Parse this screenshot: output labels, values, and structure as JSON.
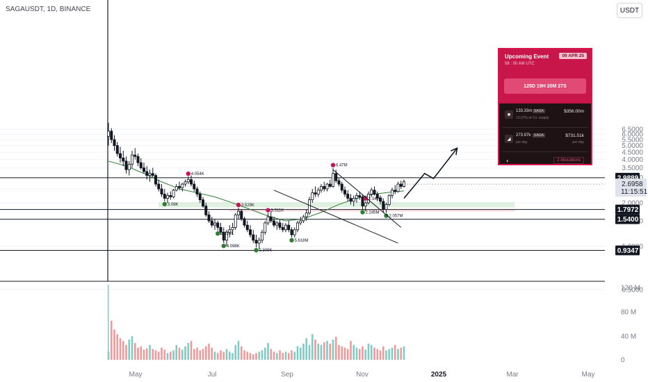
{
  "header": {
    "symbol_title": "SAGAUSDT, 1D, BINANCE",
    "currency_button": "USDT"
  },
  "event_card": {
    "title": "Upcoming Event",
    "date": "09 APR 25",
    "time": "08 : 00 AM UTC",
    "countdown": "125D 19H 20M 27S",
    "rows": [
      {
        "amount": "133.33m",
        "token": "SAGA",
        "sub": "13.07% of Cir. supply",
        "value": "$356.00m",
        "value_sub": ""
      },
      {
        "amount": "273.97k",
        "token": "SAGA",
        "sub": "per day",
        "value": "$731.51k",
        "value_sub": "per day"
      }
    ],
    "allocations": "2 Allocations"
  },
  "colors": {
    "up": "#26a69a",
    "down": "#ef5350",
    "ma": "#2e7d32",
    "accent": "#d6184e",
    "tag_bg": "#131722",
    "current_tag_bg": "#e0e3eb"
  },
  "chart_data": {
    "type": "candlestick",
    "title": "SAGAUSDT, 1D, BINANCE",
    "y_axis": {
      "scale": "log",
      "ticks": [
        "6.5000",
        "6.0000",
        "5.5000",
        "5.0000",
        "4.5000",
        "4.0000",
        "3.5000",
        "3.0000",
        "2.5000",
        "2.0000",
        "1.5000",
        "1.0000",
        "0.5000"
      ],
      "range": [
        0.32,
        7.5
      ]
    },
    "x_axis": {
      "ticks": [
        "May",
        "Jul",
        "Sep",
        "Nov",
        "2025",
        "Mar",
        "May"
      ]
    },
    "volume_axis": {
      "ticks": [
        "120 M",
        "80 M",
        "40 M",
        "0"
      ]
    },
    "price_levels": [
      {
        "label": "2.9889",
        "value": 2.9889
      },
      {
        "label": "1.7972",
        "value": 1.7972
      },
      {
        "label": "1.5400",
        "value": 1.54
      },
      {
        "label": "0.9347",
        "value": 0.9347
      }
    ],
    "current_price": {
      "value": "2.6958",
      "countdown": "11:15:51"
    },
    "ohlc": [
      [
        5.8,
        7.2,
        5.0,
        6.3
      ],
      [
        6.3,
        6.6,
        5.2,
        5.5
      ],
      [
        5.5,
        5.9,
        4.6,
        5.0
      ],
      [
        5.0,
        5.3,
        4.2,
        4.4
      ],
      [
        4.4,
        4.9,
        3.8,
        4.1
      ],
      [
        4.1,
        4.6,
        3.6,
        3.9
      ],
      [
        3.9,
        4.2,
        3.2,
        3.4
      ],
      [
        3.4,
        3.9,
        3.1,
        3.7
      ],
      [
        3.7,
        4.6,
        3.5,
        4.3
      ],
      [
        4.3,
        4.8,
        4.0,
        4.2
      ],
      [
        4.2,
        4.4,
        3.6,
        3.8
      ],
      [
        3.8,
        4.1,
        3.4,
        3.5
      ],
      [
        3.5,
        3.8,
        3.2,
        3.3
      ],
      [
        3.3,
        3.6,
        2.9,
        3.1
      ],
      [
        3.1,
        3.4,
        2.8,
        3.2
      ],
      [
        3.2,
        3.5,
        3.0,
        3.1
      ],
      [
        3.1,
        3.2,
        2.6,
        2.7
      ],
      [
        2.7,
        2.9,
        2.4,
        2.5
      ],
      [
        2.5,
        2.7,
        2.2,
        2.3
      ],
      [
        2.3,
        2.5,
        2.05,
        2.15
      ],
      [
        2.15,
        2.35,
        2.0,
        2.25
      ],
      [
        2.25,
        2.4,
        2.1,
        2.2
      ],
      [
        2.2,
        2.5,
        2.15,
        2.45
      ],
      [
        2.45,
        2.7,
        2.4,
        2.6
      ],
      [
        2.6,
        2.8,
        2.45,
        2.55
      ],
      [
        2.55,
        2.75,
        2.4,
        2.7
      ],
      [
        2.7,
        2.9,
        2.6,
        2.8
      ],
      [
        2.8,
        3.05,
        2.7,
        2.9
      ],
      [
        2.9,
        3.1,
        2.6,
        2.7
      ],
      [
        2.7,
        2.85,
        2.4,
        2.5
      ],
      [
        2.5,
        2.6,
        2.2,
        2.3
      ],
      [
        2.3,
        2.4,
        2.0,
        2.1
      ],
      [
        2.1,
        2.2,
        1.85,
        1.9
      ],
      [
        1.9,
        2.0,
        1.6,
        1.65
      ],
      [
        1.65,
        1.75,
        1.45,
        1.5
      ],
      [
        1.5,
        1.6,
        1.35,
        1.4
      ],
      [
        1.4,
        1.55,
        1.3,
        1.45
      ],
      [
        1.45,
        1.5,
        1.28,
        1.35
      ],
      [
        1.35,
        1.45,
        1.2,
        1.25
      ],
      [
        1.25,
        1.35,
        1.05,
        1.1
      ],
      [
        1.1,
        1.3,
        1.0,
        1.25
      ],
      [
        1.25,
        1.4,
        1.15,
        1.3
      ],
      [
        1.3,
        1.45,
        1.2,
        1.35
      ],
      [
        1.35,
        1.7,
        1.3,
        1.65
      ],
      [
        1.65,
        1.85,
        1.55,
        1.75
      ],
      [
        1.75,
        1.8,
        1.5,
        1.55
      ],
      [
        1.55,
        1.6,
        1.35,
        1.4
      ],
      [
        1.4,
        1.5,
        1.25,
        1.3
      ],
      [
        1.3,
        1.4,
        1.15,
        1.2
      ],
      [
        1.2,
        1.3,
        1.05,
        1.1
      ],
      [
        1.1,
        1.2,
        0.98,
        1.05
      ],
      [
        1.05,
        1.15,
        0.95,
        1.1
      ],
      [
        1.1,
        1.3,
        1.05,
        1.25
      ],
      [
        1.25,
        1.5,
        1.2,
        1.45
      ],
      [
        1.45,
        1.7,
        1.4,
        1.6
      ],
      [
        1.6,
        1.75,
        1.45,
        1.5
      ],
      [
        1.5,
        1.6,
        1.35,
        1.4
      ],
      [
        1.4,
        1.5,
        1.3,
        1.45
      ],
      [
        1.45,
        1.55,
        1.3,
        1.35
      ],
      [
        1.35,
        1.45,
        1.25,
        1.3
      ],
      [
        1.3,
        1.45,
        1.25,
        1.4
      ],
      [
        1.4,
        1.5,
        1.25,
        1.3
      ],
      [
        1.3,
        1.35,
        1.15,
        1.2
      ],
      [
        1.2,
        1.35,
        1.15,
        1.3
      ],
      [
        1.3,
        1.5,
        1.25,
        1.45
      ],
      [
        1.45,
        1.6,
        1.4,
        1.5
      ],
      [
        1.5,
        1.65,
        1.45,
        1.6
      ],
      [
        1.6,
        1.8,
        1.5,
        1.7
      ],
      [
        1.7,
        2.2,
        1.65,
        2.1
      ],
      [
        2.1,
        2.5,
        2.0,
        2.35
      ],
      [
        2.35,
        2.6,
        2.2,
        2.3
      ],
      [
        2.3,
        2.55,
        2.2,
        2.45
      ],
      [
        2.45,
        2.7,
        2.35,
        2.6
      ],
      [
        2.6,
        2.8,
        2.4,
        2.5
      ],
      [
        2.5,
        2.75,
        2.4,
        2.7
      ],
      [
        2.7,
        2.9,
        2.55,
        2.6
      ],
      [
        2.6,
        3.5,
        2.55,
        3.2
      ],
      [
        3.2,
        3.4,
        2.75,
        2.85
      ],
      [
        2.85,
        3.0,
        2.6,
        2.7
      ],
      [
        2.7,
        2.8,
        2.35,
        2.45
      ],
      [
        2.45,
        2.6,
        2.2,
        2.3
      ],
      [
        2.3,
        2.45,
        2.05,
        2.15
      ],
      [
        2.15,
        2.3,
        1.95,
        2.05
      ],
      [
        2.05,
        2.25,
        1.9,
        2.15
      ],
      [
        2.15,
        2.35,
        2.0,
        2.25
      ],
      [
        2.25,
        2.4,
        2.1,
        2.2
      ],
      [
        2.2,
        2.3,
        1.8,
        1.9
      ],
      [
        1.9,
        2.05,
        1.75,
        2.0
      ],
      [
        2.0,
        2.4,
        1.95,
        2.3
      ],
      [
        2.3,
        2.55,
        2.2,
        2.45
      ],
      [
        2.45,
        2.6,
        2.25,
        2.3
      ],
      [
        2.3,
        2.4,
        2.05,
        2.15
      ],
      [
        2.15,
        2.25,
        1.95,
        2.05
      ],
      [
        2.05,
        2.15,
        1.7,
        1.8
      ],
      [
        1.8,
        2.0,
        1.7,
        1.95
      ],
      [
        1.95,
        2.3,
        1.9,
        2.25
      ],
      [
        2.25,
        2.55,
        2.15,
        2.45
      ],
      [
        2.45,
        2.65,
        2.3,
        2.4
      ],
      [
        2.4,
        2.8,
        2.35,
        2.7
      ],
      [
        2.7,
        2.85,
        2.5,
        2.6
      ],
      [
        2.6,
        2.9,
        2.55,
        2.8
      ]
    ],
    "moving_average": [
      [
        0,
        3.9
      ],
      [
        6,
        3.6
      ],
      [
        12,
        3.2
      ],
      [
        18,
        2.8
      ],
      [
        24,
        2.5
      ],
      [
        30,
        2.35
      ],
      [
        36,
        2.2
      ],
      [
        42,
        2.0
      ],
      [
        48,
        1.8
      ],
      [
        54,
        1.62
      ],
      [
        60,
        1.5
      ],
      [
        66,
        1.55
      ],
      [
        72,
        1.72
      ],
      [
        78,
        1.95
      ],
      [
        84,
        2.15
      ],
      [
        90,
        2.3
      ],
      [
        96,
        2.38
      ],
      [
        100,
        2.42
      ]
    ],
    "markers": [
      {
        "label": "4.054K",
        "kind": "high",
        "i": 27
      },
      {
        "label": "3.09K",
        "kind": "low",
        "i": 19
      },
      {
        "label": "2.024K",
        "kind": "low",
        "i": 37
      },
      {
        "label": "3.529K",
        "kind": "high",
        "i": 44
      },
      {
        "label": "4.098K",
        "kind": "low",
        "i": 39
      },
      {
        "label": "3.511K",
        "kind": "high",
        "i": 54
      },
      {
        "label": "2.309K",
        "kind": "low",
        "i": 50
      },
      {
        "label": "5.618M",
        "kind": "low",
        "i": 62
      },
      {
        "label": "6.47M",
        "kind": "high",
        "i": 76
      },
      {
        "label": "2.342M",
        "kind": "high",
        "i": 87
      },
      {
        "label": "2.245M",
        "kind": "low",
        "i": 86
      },
      {
        "label": "2.057M",
        "kind": "low",
        "i": 94
      }
    ],
    "volume": [
      12,
      58,
      45,
      38,
      32,
      28,
      22,
      30,
      35,
      25,
      18,
      20,
      15,
      17,
      22,
      16,
      14,
      12,
      18,
      15,
      10,
      12,
      14,
      22,
      18,
      15,
      20,
      25,
      28,
      16,
      18,
      14,
      16,
      20,
      24,
      18,
      12,
      10,
      14,
      12,
      16,
      12,
      10,
      22,
      28,
      20,
      14,
      12,
      10,
      8,
      10,
      12,
      14,
      18,
      25,
      16,
      12,
      10,
      14,
      10,
      12,
      10,
      14,
      12,
      20,
      18,
      24,
      32,
      22,
      38,
      30,
      24,
      22,
      26,
      28,
      24,
      30,
      34,
      22,
      20,
      18,
      16,
      28,
      22,
      18,
      16,
      20,
      15,
      24,
      22,
      18,
      16,
      14,
      20,
      14,
      16,
      18,
      22,
      16,
      18,
      20
    ],
    "drawings": {
      "upper_wedge_line": [
        [
          76,
          3.4
        ],
        [
          99,
          1.35
        ]
      ],
      "lower_wedge_line": [
        [
          56,
          2.45
        ],
        [
          98,
          1.05
        ]
      ],
      "projection_arrow": [
        [
          100,
          2.15
        ],
        [
          107,
          3.2
        ],
        [
          110,
          2.95
        ],
        [
          118,
          4.8
        ]
      ]
    }
  }
}
